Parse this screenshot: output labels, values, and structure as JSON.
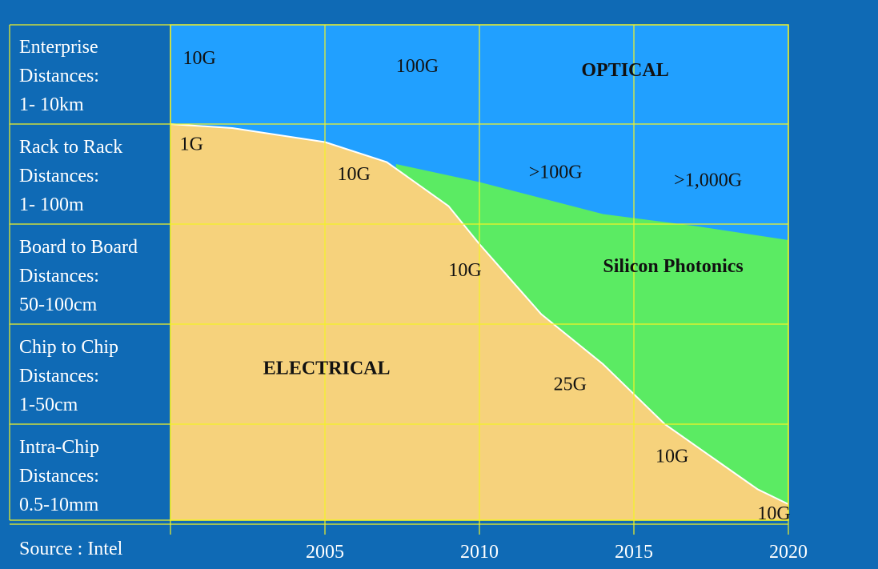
{
  "chart_data": {
    "type": "area",
    "title": "",
    "xlabel": "",
    "ylabel": "",
    "xlim": [
      2000,
      2020
    ],
    "x_ticks": [
      "2005",
      "2010",
      "2015",
      "2020"
    ],
    "rows": [
      {
        "lines": [
          "Enterprise",
          "Distances:",
          "1- 10km"
        ]
      },
      {
        "lines": [
          "Rack to Rack",
          "Distances:",
          "1- 100m"
        ]
      },
      {
        "lines": [
          "Board to Board",
          "Distances:",
          "50-100cm"
        ]
      },
      {
        "lines": [
          "Chip to Chip",
          "Distances:",
          "1-50cm"
        ]
      },
      {
        "lines": [
          "Intra-Chip",
          "Distances:",
          "0.5-10mm"
        ]
      }
    ],
    "regions": [
      {
        "name": "OPTICAL",
        "color": "#21A0FF"
      },
      {
        "name": "Silicon Photonics",
        "color": "#5BEB63"
      },
      {
        "name": "ELECTRICAL",
        "color": "#F6D27C"
      }
    ],
    "electrical_boundary": [
      {
        "year": 2000,
        "level": 0.0
      },
      {
        "year": 2002,
        "level": 0.04
      },
      {
        "year": 2005,
        "level": 0.18
      },
      {
        "year": 2007,
        "level": 0.38
      },
      {
        "year": 2009,
        "level": 0.82
      },
      {
        "year": 2010,
        "level": 1.2
      },
      {
        "year": 2012,
        "level": 1.9
      },
      {
        "year": 2014,
        "level": 2.4
      },
      {
        "year": 2016,
        "level": 3.0
      },
      {
        "year": 2019,
        "level": 3.65
      },
      {
        "year": 2020,
        "level": 3.8
      }
    ],
    "silicon_photonics_top": [
      {
        "year": 2007.3,
        "level": 0.4
      },
      {
        "year": 2010,
        "level": 0.58
      },
      {
        "year": 2014,
        "level": 0.9
      },
      {
        "year": 2017,
        "level": 1.02
      },
      {
        "year": 2020,
        "level": 1.16
      }
    ],
    "annotations": [
      {
        "text": "10G",
        "year": 2000.4,
        "level": -0.6,
        "bold": false
      },
      {
        "text": "100G",
        "year": 2007.3,
        "level": -0.52,
        "bold": false
      },
      {
        "text": "OPTICAL",
        "year": 2013.3,
        "level": -0.48,
        "bold": true
      },
      {
        "text": "1G",
        "year": 2000.3,
        "level": 0.26,
        "bold": false
      },
      {
        "text": "10G",
        "year": 2005.4,
        "level": 0.56,
        "bold": false
      },
      {
        "text": ">100G",
        "year": 2011.6,
        "level": 0.54,
        "bold": false
      },
      {
        "text": ">1,000G",
        "year": 2016.3,
        "level": 0.62,
        "bold": false
      },
      {
        "text": "10G",
        "year": 2009,
        "level": 1.52,
        "bold": false
      },
      {
        "text": "Silicon Photonics",
        "year": 2014.0,
        "level": 1.48,
        "bold": true
      },
      {
        "text": "ELECTRICAL",
        "year": 2003,
        "level": 2.5,
        "bold": true
      },
      {
        "text": "25G",
        "year": 2012.4,
        "level": 2.66,
        "bold": false
      },
      {
        "text": "10G",
        "year": 2015.7,
        "level": 3.38,
        "bold": false
      },
      {
        "text": "10G",
        "year": 2019,
        "level": 3.95,
        "bold": false
      }
    ],
    "grid": true,
    "legend": "none"
  },
  "source": "Source : Intel",
  "colors": {
    "background": "#0F6AB5",
    "grid": "#F2F226",
    "border": "#FFFFFF",
    "text_on_plot": "#111111",
    "text_on_background": "#FFFFFF"
  }
}
